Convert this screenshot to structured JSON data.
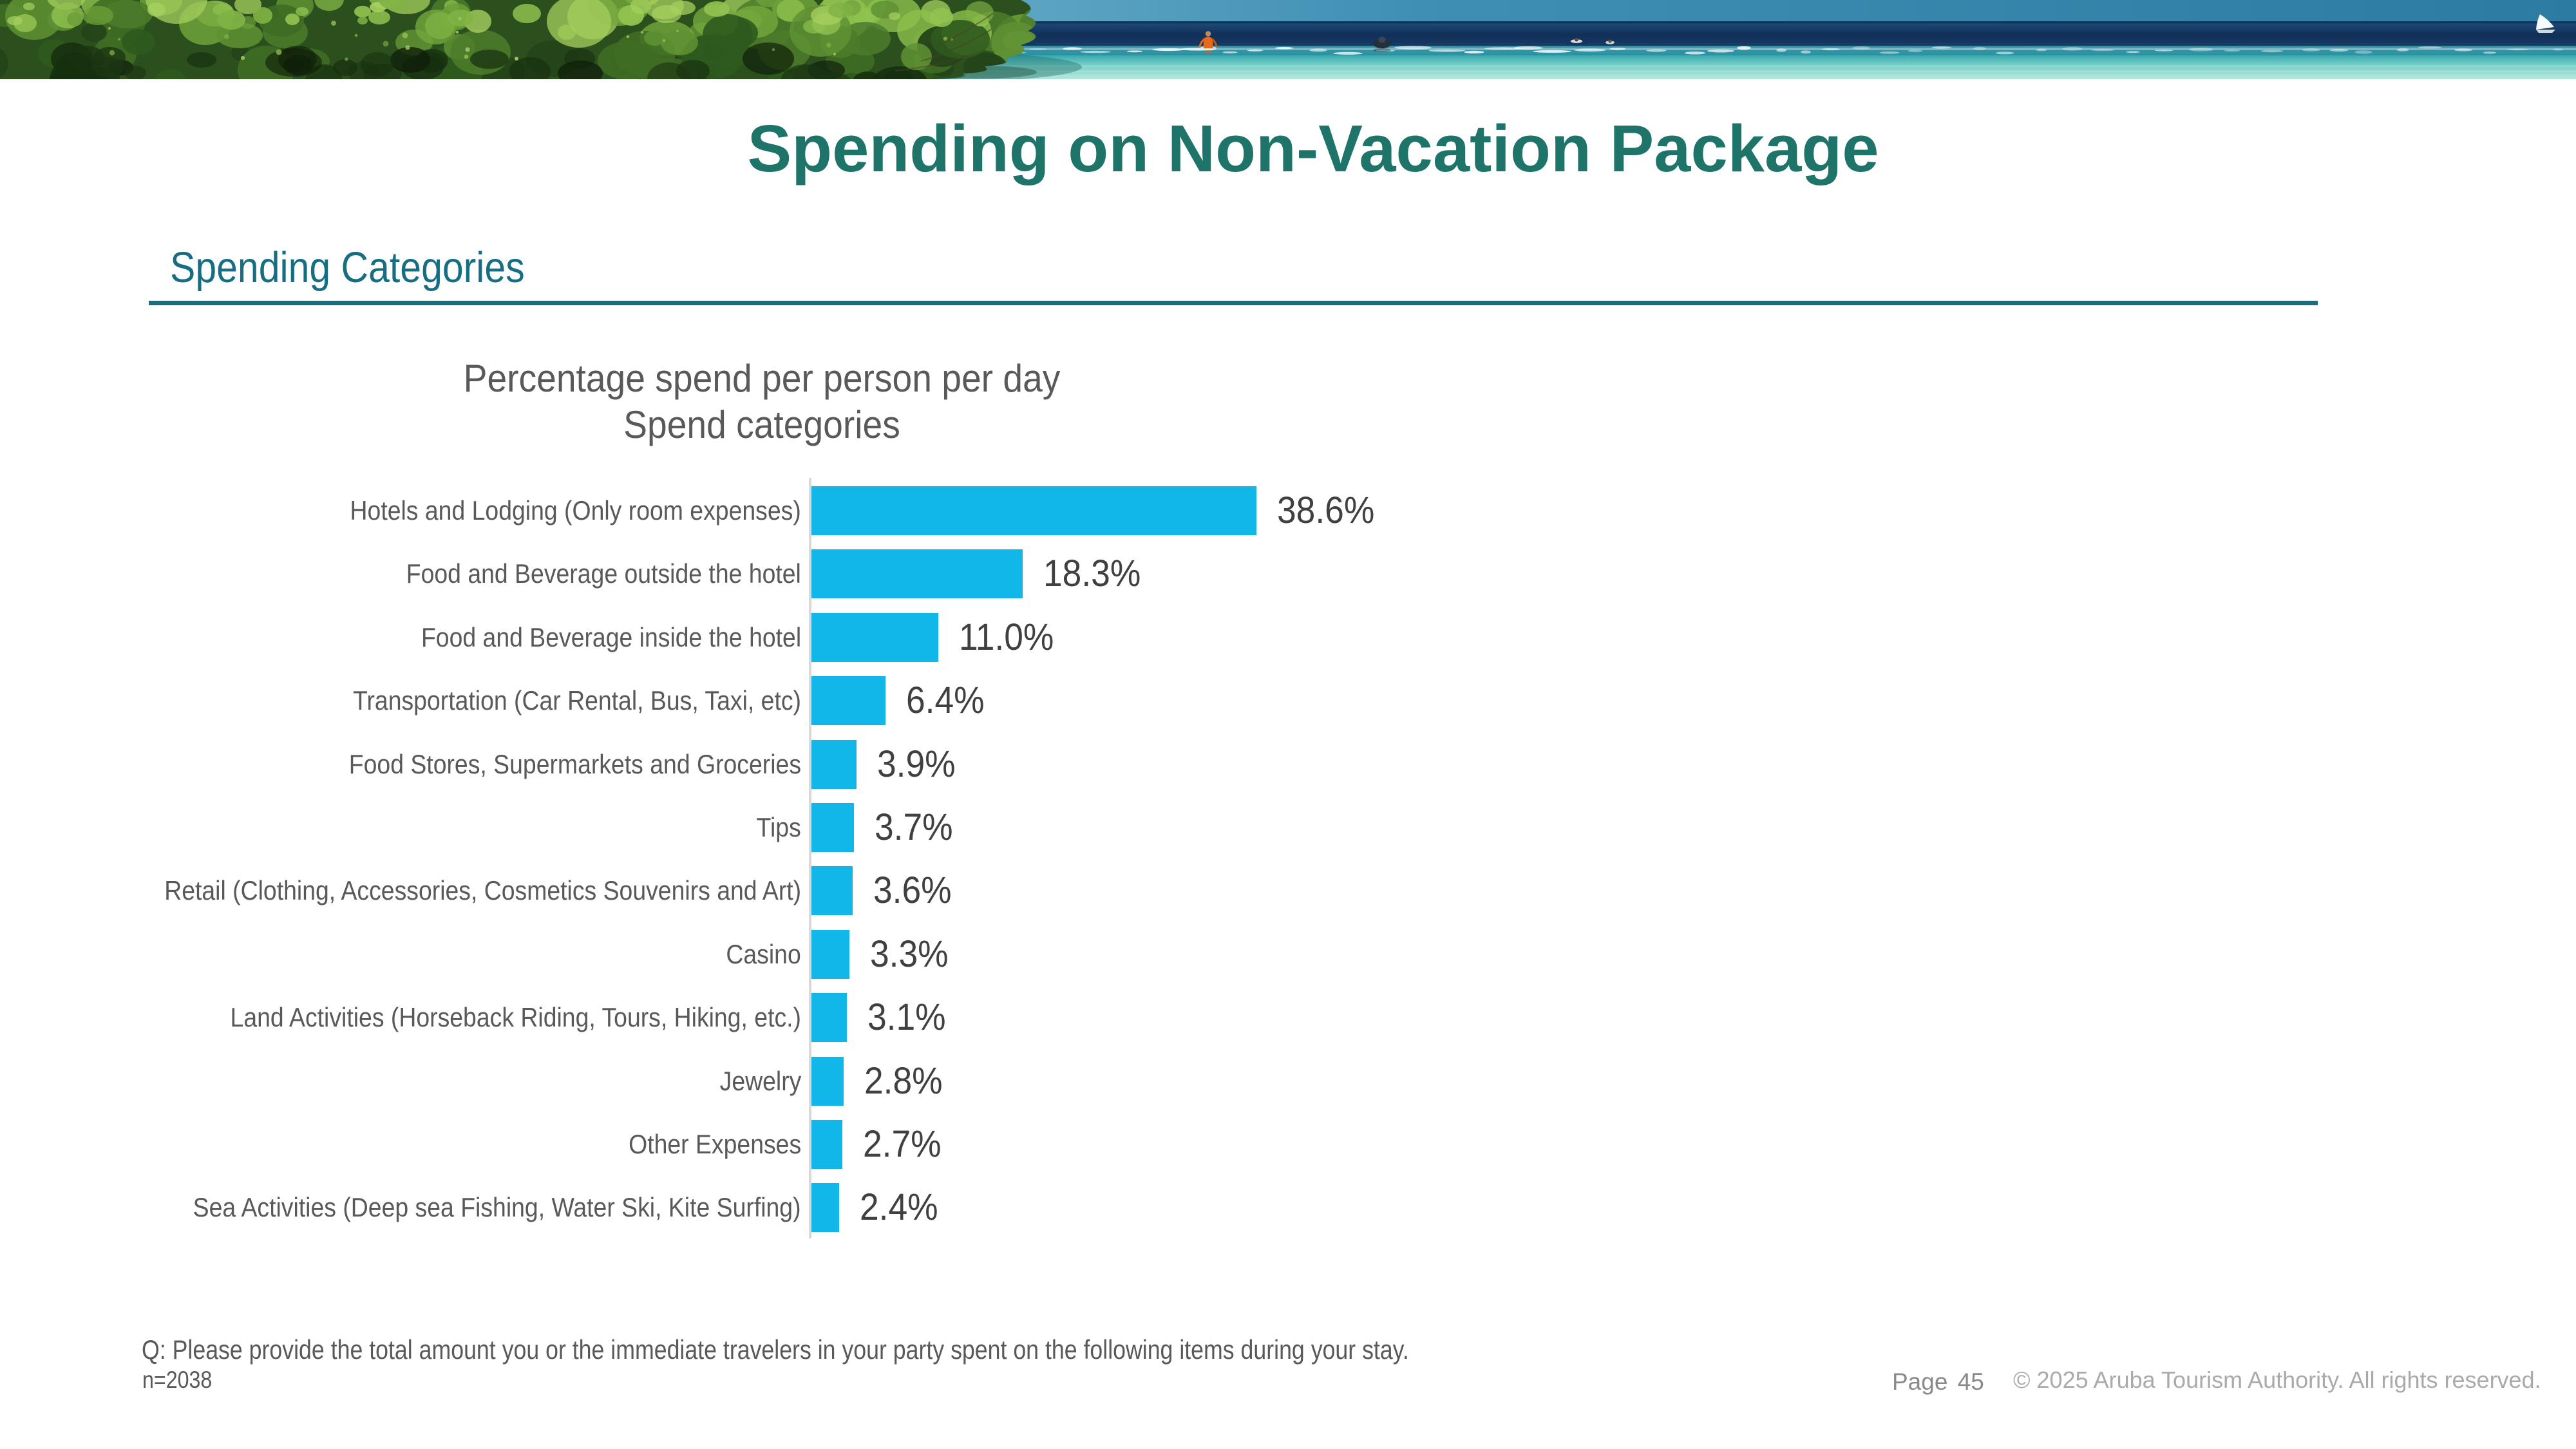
{
  "slide": {
    "title": "Spending on Non-Vacation Package",
    "section_heading": "Spending Categories",
    "footnote_question": "Q: Please provide the total amount you or the immediate travelers in your party spent on the following items during your stay.",
    "footnote_sample": "n=2038",
    "page_label": "Page 45",
    "copyright": "© 2025 Aruba Tourism Authority. All rights reserved."
  },
  "banner": {
    "description": "Photo strip: mangrove trees over a turquoise lagoon with a person, boat, swimmers and a sail"
  },
  "colors": {
    "title_teal": "#1e7468",
    "heading_teal": "#156e82",
    "rule_teal": "#156e82",
    "bar_cyan": "#12b7ea",
    "axis_gray": "#d9d9d9",
    "category_label_gray": "#595959",
    "value_label_gray": "#404040",
    "chart_title_gray": "#595959",
    "footnote_gray": "#595959",
    "page_gray": "#878787",
    "copyright_gray": "#aaaaaa"
  },
  "chart_data": {
    "type": "bar",
    "orientation": "horizontal",
    "title_line1": "Percentage spend per person per day",
    "title_line2": "Spend categories",
    "categories": [
      "Hotels and Lodging (Only room expenses)",
      "Food and Beverage outside the hotel",
      "Food and Beverage inside the hotel",
      "Transportation (Car Rental, Bus, Taxi, etc)",
      "Food Stores, Supermarkets and Groceries",
      "Tips",
      "Retail (Clothing, Accessories, Cosmetics Souvenirs and Art)",
      "Casino",
      "Land Activities (Horseback Riding, Tours, Hiking, etc.)",
      "Jewelry",
      "Other Expenses",
      "Sea Activities (Deep sea Fishing, Water Ski, Kite Surfing)"
    ],
    "values": [
      38.6,
      18.3,
      11.0,
      6.4,
      3.9,
      3.7,
      3.6,
      3.3,
      3.1,
      2.8,
      2.7,
      2.4
    ],
    "value_labels": [
      "38.6%",
      "18.3%",
      "11.0%",
      "6.4%",
      "3.9%",
      "3.7%",
      "3.6%",
      "3.3%",
      "3.1%",
      "2.8%",
      "2.7%",
      "2.4%"
    ],
    "xlim": [
      0,
      45
    ],
    "grid": false,
    "legend": null,
    "bar_color": "#12b7ea",
    "value_label_position": "outside-end"
  }
}
